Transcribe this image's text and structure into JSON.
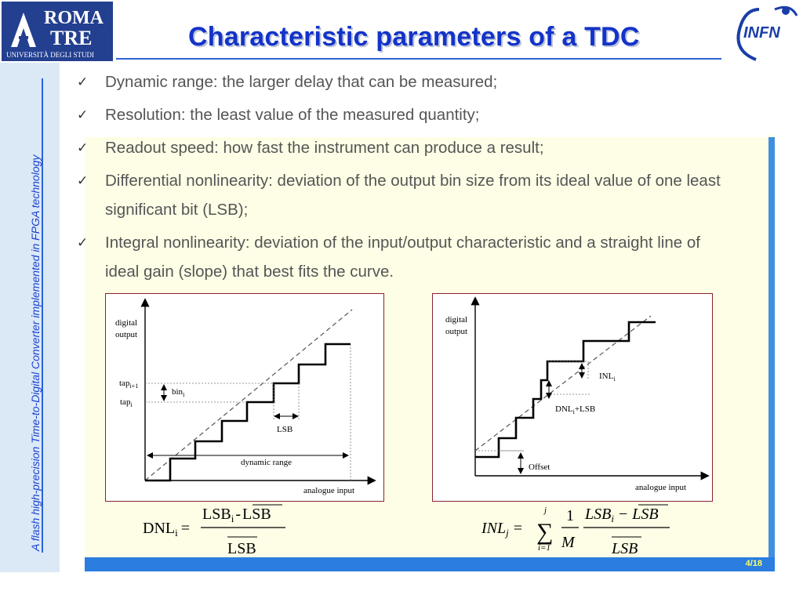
{
  "title": "Characteristic parameters of a TDC",
  "side_title": "A flash high-precision Time-to-Digital Converter implemented in FPGA technology",
  "logos": {
    "left_line1": "ROMA",
    "left_line2": "TRE",
    "left_line3": "UNIVERSITÀ DEGLI STUDI",
    "right": "INFN"
  },
  "bullets": [
    {
      "text": "Dynamic range: the larger delay that can be measured;"
    },
    {
      "text": "Resolution: the least value of the measured quantity;"
    },
    {
      "text": "Readout speed: how fast the instrument can produce a result;"
    },
    {
      "text": "Differential nonlinearity: deviation of the output bin size from its ideal value of one least significant bit (LSB);"
    },
    {
      "text": "Integral nonlinearity: deviation of the input/output characteristic and a straight line of ideal gain (slope) that best fits the curve."
    }
  ],
  "diagram_left": {
    "y_label_1": "digital",
    "y_label_2": "output",
    "x_label": "analogue input",
    "tap_i1": "tap",
    "tap_i1_sub": "i+1",
    "tap_i": "tap",
    "tap_i_sub": "i",
    "bin": "bin",
    "bin_sub": "i",
    "lsb": "LSB",
    "dynamic_range": "dynamic range"
  },
  "diagram_right": {
    "y_label_1": "digital",
    "y_label_2": "output",
    "x_label": "analogue input",
    "inl": "INL",
    "inl_sub": "i",
    "dnl": "DNL",
    "dnl_sub": "i",
    "dnl_suffix": "+LSB",
    "offset": "Offset"
  },
  "formula_dnl": {
    "lhs": "DNL",
    "lhs_sub": "i",
    "eq": "=",
    "num_a": "LSB",
    "num_a_sub": "i",
    "num_op": "-",
    "num_b": "LSB",
    "den": "LSB"
  },
  "formula_inl": {
    "lhs": "INL",
    "lhs_sub": "j",
    "eq": "=",
    "sum_top": "j",
    "sum_bottom": "i=1",
    "sigma": "∑",
    "frac_num": "1",
    "frac_den": "M",
    "num_a": "LSB",
    "num_a_sub": "i",
    "num_op": "−",
    "num_b": "LSB",
    "den": "LSB"
  },
  "page_number": "4/18",
  "colors": {
    "title": "#1333c9",
    "accent_blue": "#2b7de0",
    "panel": "#fefee6",
    "diagram_border": "#8b2230",
    "page_number": "#ffff66"
  }
}
